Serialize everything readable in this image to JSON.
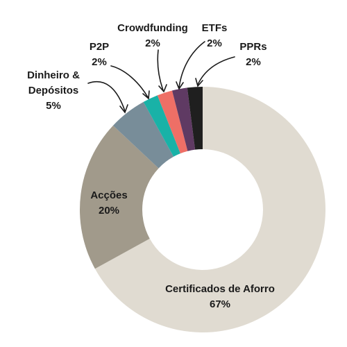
{
  "chart_data": {
    "type": "pie",
    "variant": "donut",
    "categories": [
      "Certificados de Aforro",
      "Acções",
      "Dinheiro & Depósitos",
      "P2P",
      "Crowdfunding",
      "ETFs",
      "PPRs"
    ],
    "values": [
      67,
      20,
      5,
      2,
      2,
      2,
      2
    ],
    "value_labels": [
      "67%",
      "20%",
      "5%",
      "2%",
      "2%",
      "2%",
      "2%"
    ],
    "colors": [
      "#e0dbd1",
      "#a19a8b",
      "#788d99",
      "#19b2a7",
      "#ee6f66",
      "#5f3a63",
      "#1f1f1f"
    ],
    "title": "",
    "legend": "none"
  }
}
